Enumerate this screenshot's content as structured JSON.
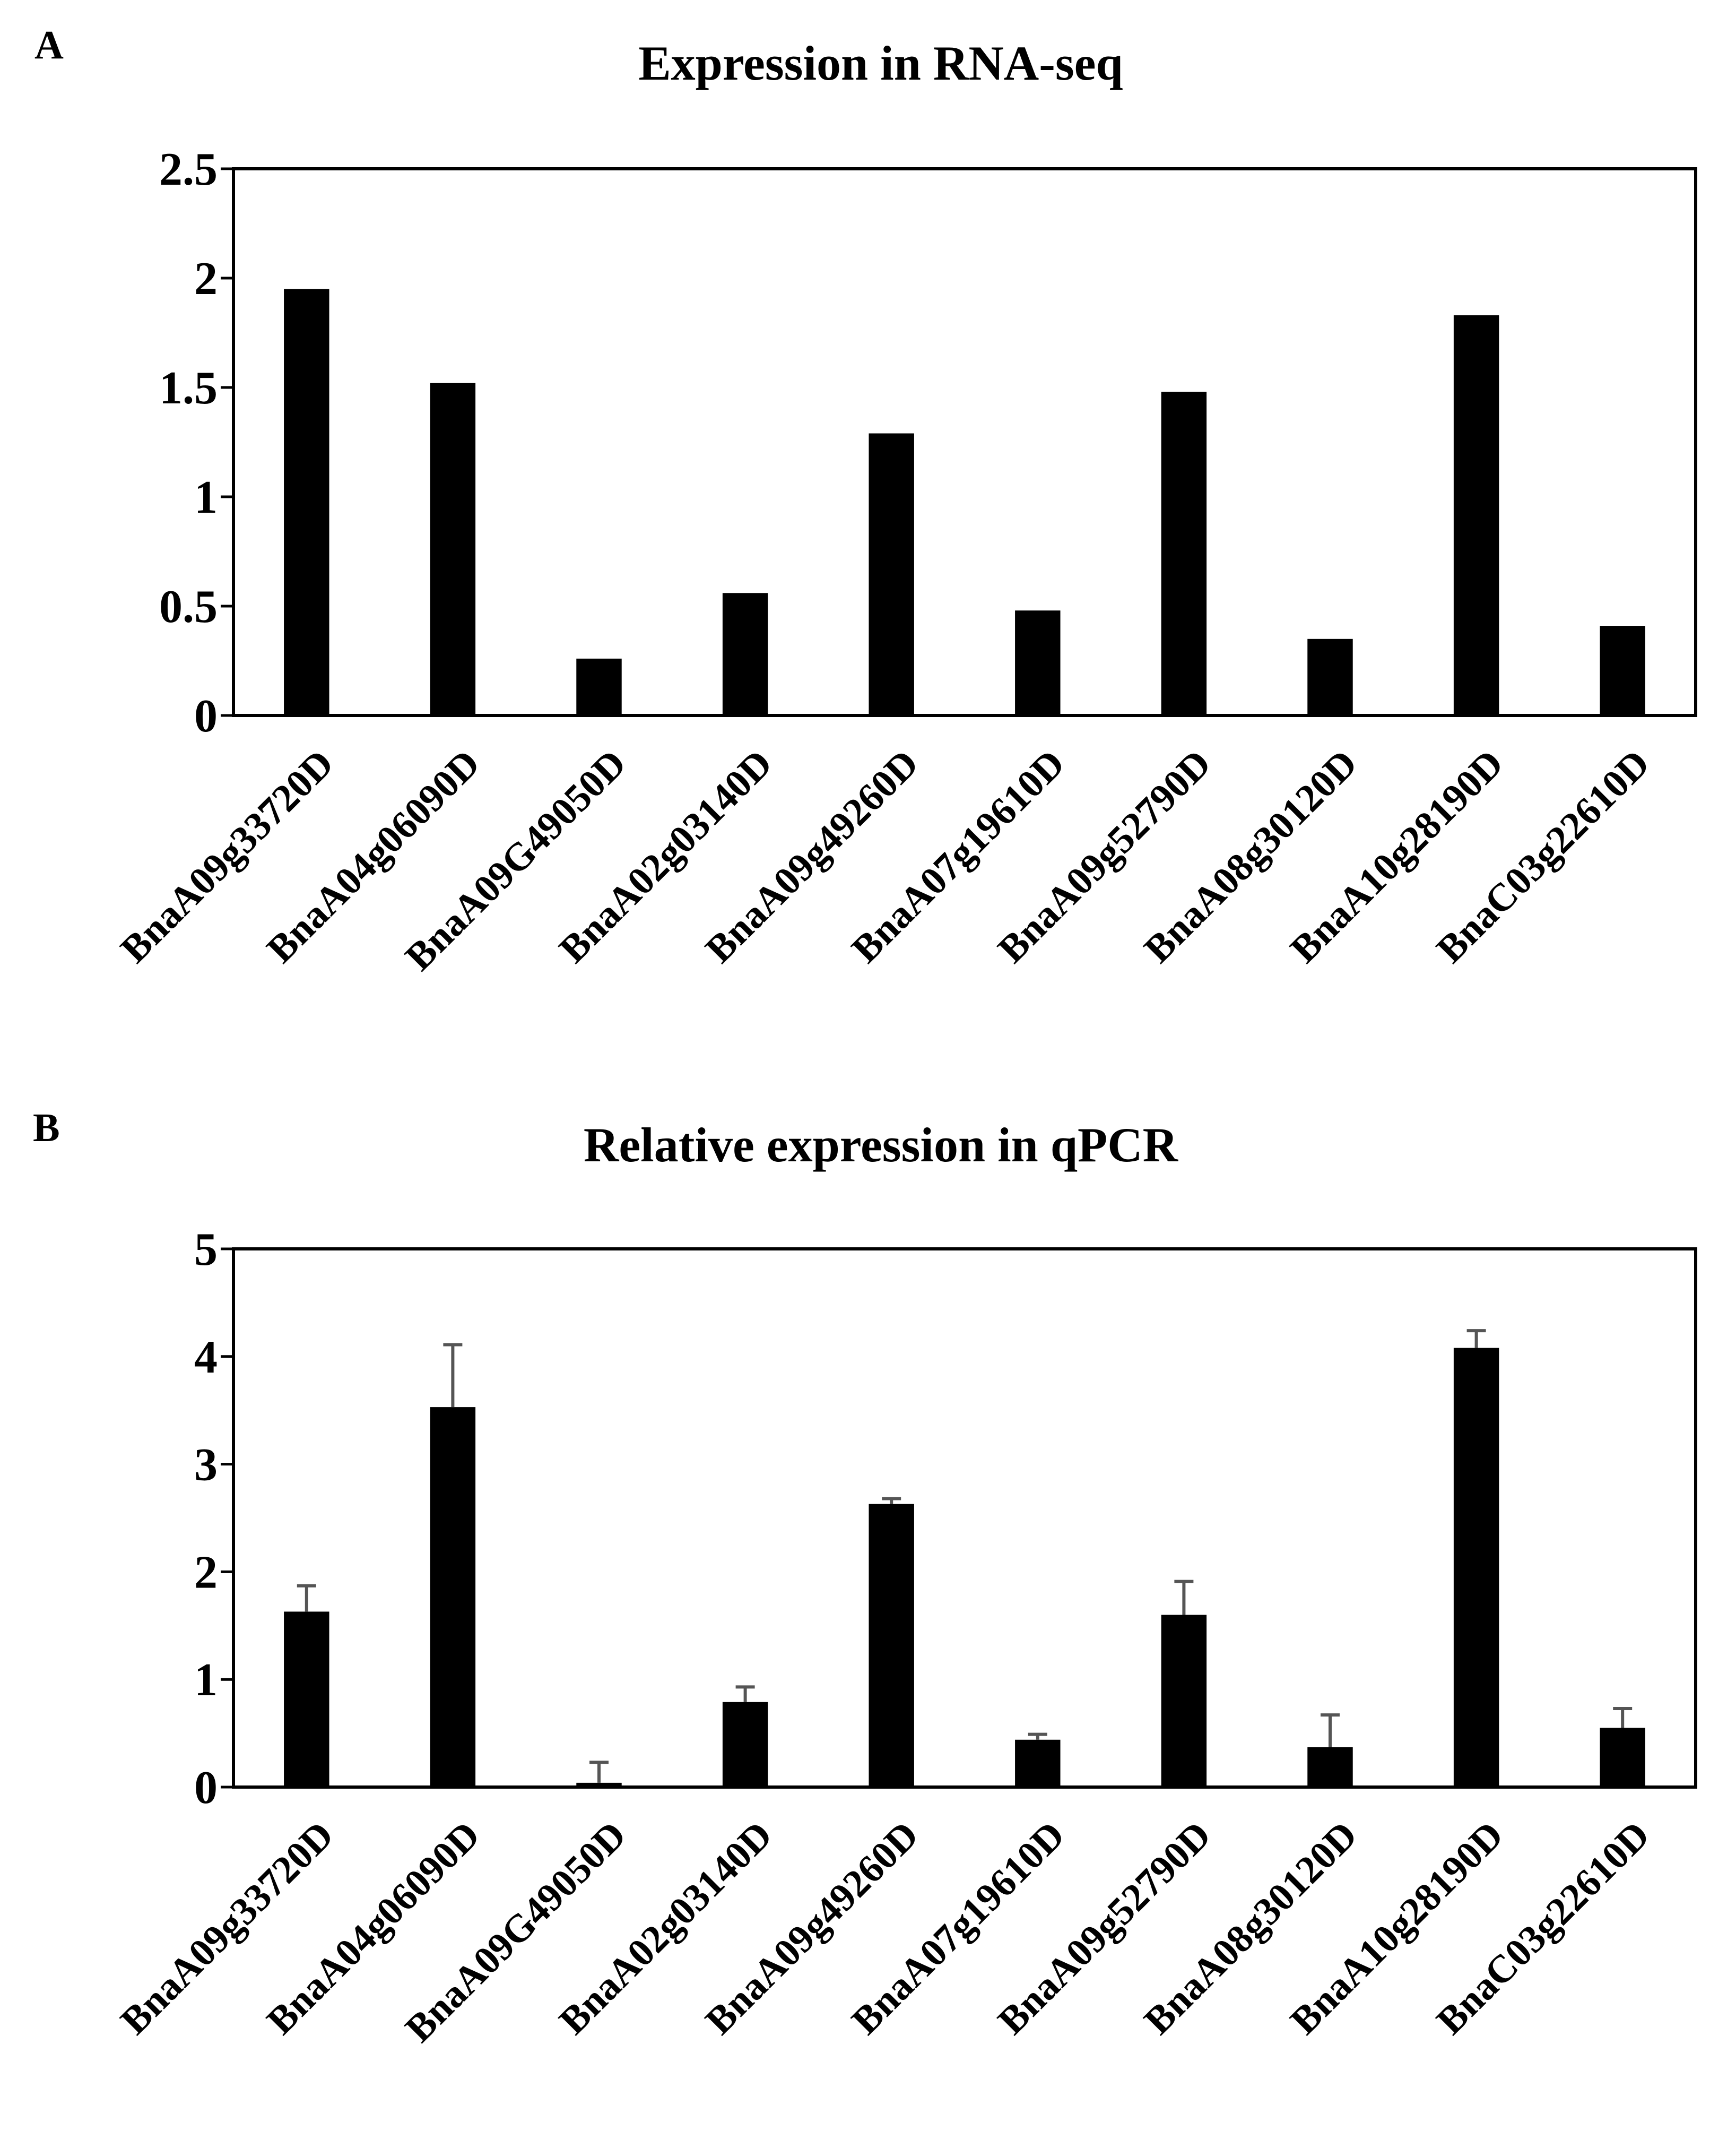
{
  "chart_data": [
    {
      "panel_label": "A",
      "type": "bar",
      "title": "Expression in RNA-seq",
      "xlabel": "",
      "ylabel": "",
      "ylim": [
        0,
        2.5
      ],
      "yticks": [
        "0",
        "0.5",
        "1",
        "1.5",
        "2",
        "2.5"
      ],
      "categories": [
        "BnaA09g33720D",
        "BnaA04g06090D",
        "BnaA09G49050D",
        "BnaA02g03140D",
        "BnaA09g49260D",
        "BnaA07g19610D",
        "BnaA09g52790D",
        "BnaA08g30120D",
        "BnaA10g28190D",
        "BnaC03g22610D"
      ],
      "values": [
        1.95,
        1.52,
        0.26,
        0.56,
        1.29,
        0.48,
        1.48,
        0.35,
        1.83,
        0.41
      ],
      "bar_color": "#000000"
    },
    {
      "panel_label": "B",
      "type": "bar",
      "title": "Relative expression in qPCR",
      "xlabel": "",
      "ylabel": "",
      "ylim": [
        0,
        5
      ],
      "yticks": [
        "0",
        "1",
        "2",
        "3",
        "4",
        "5"
      ],
      "categories": [
        "BnaA09g33720D",
        "BnaA04g06090D",
        "BnaA09G49050D",
        "BnaA02g03140D",
        "BnaA09g49260D",
        "BnaA07g19610D",
        "BnaA09g52790D",
        "BnaA08g30120D",
        "BnaA10g28190D",
        "BnaC03g22610D"
      ],
      "values": [
        1.63,
        3.53,
        0.04,
        0.79,
        2.63,
        0.44,
        1.6,
        0.37,
        4.08,
        0.55
      ],
      "errors": [
        0.24,
        0.58,
        0.19,
        0.14,
        0.05,
        0.05,
        0.31,
        0.3,
        0.16,
        0.18
      ],
      "bar_color": "#000000",
      "error_color": "#555555"
    }
  ]
}
